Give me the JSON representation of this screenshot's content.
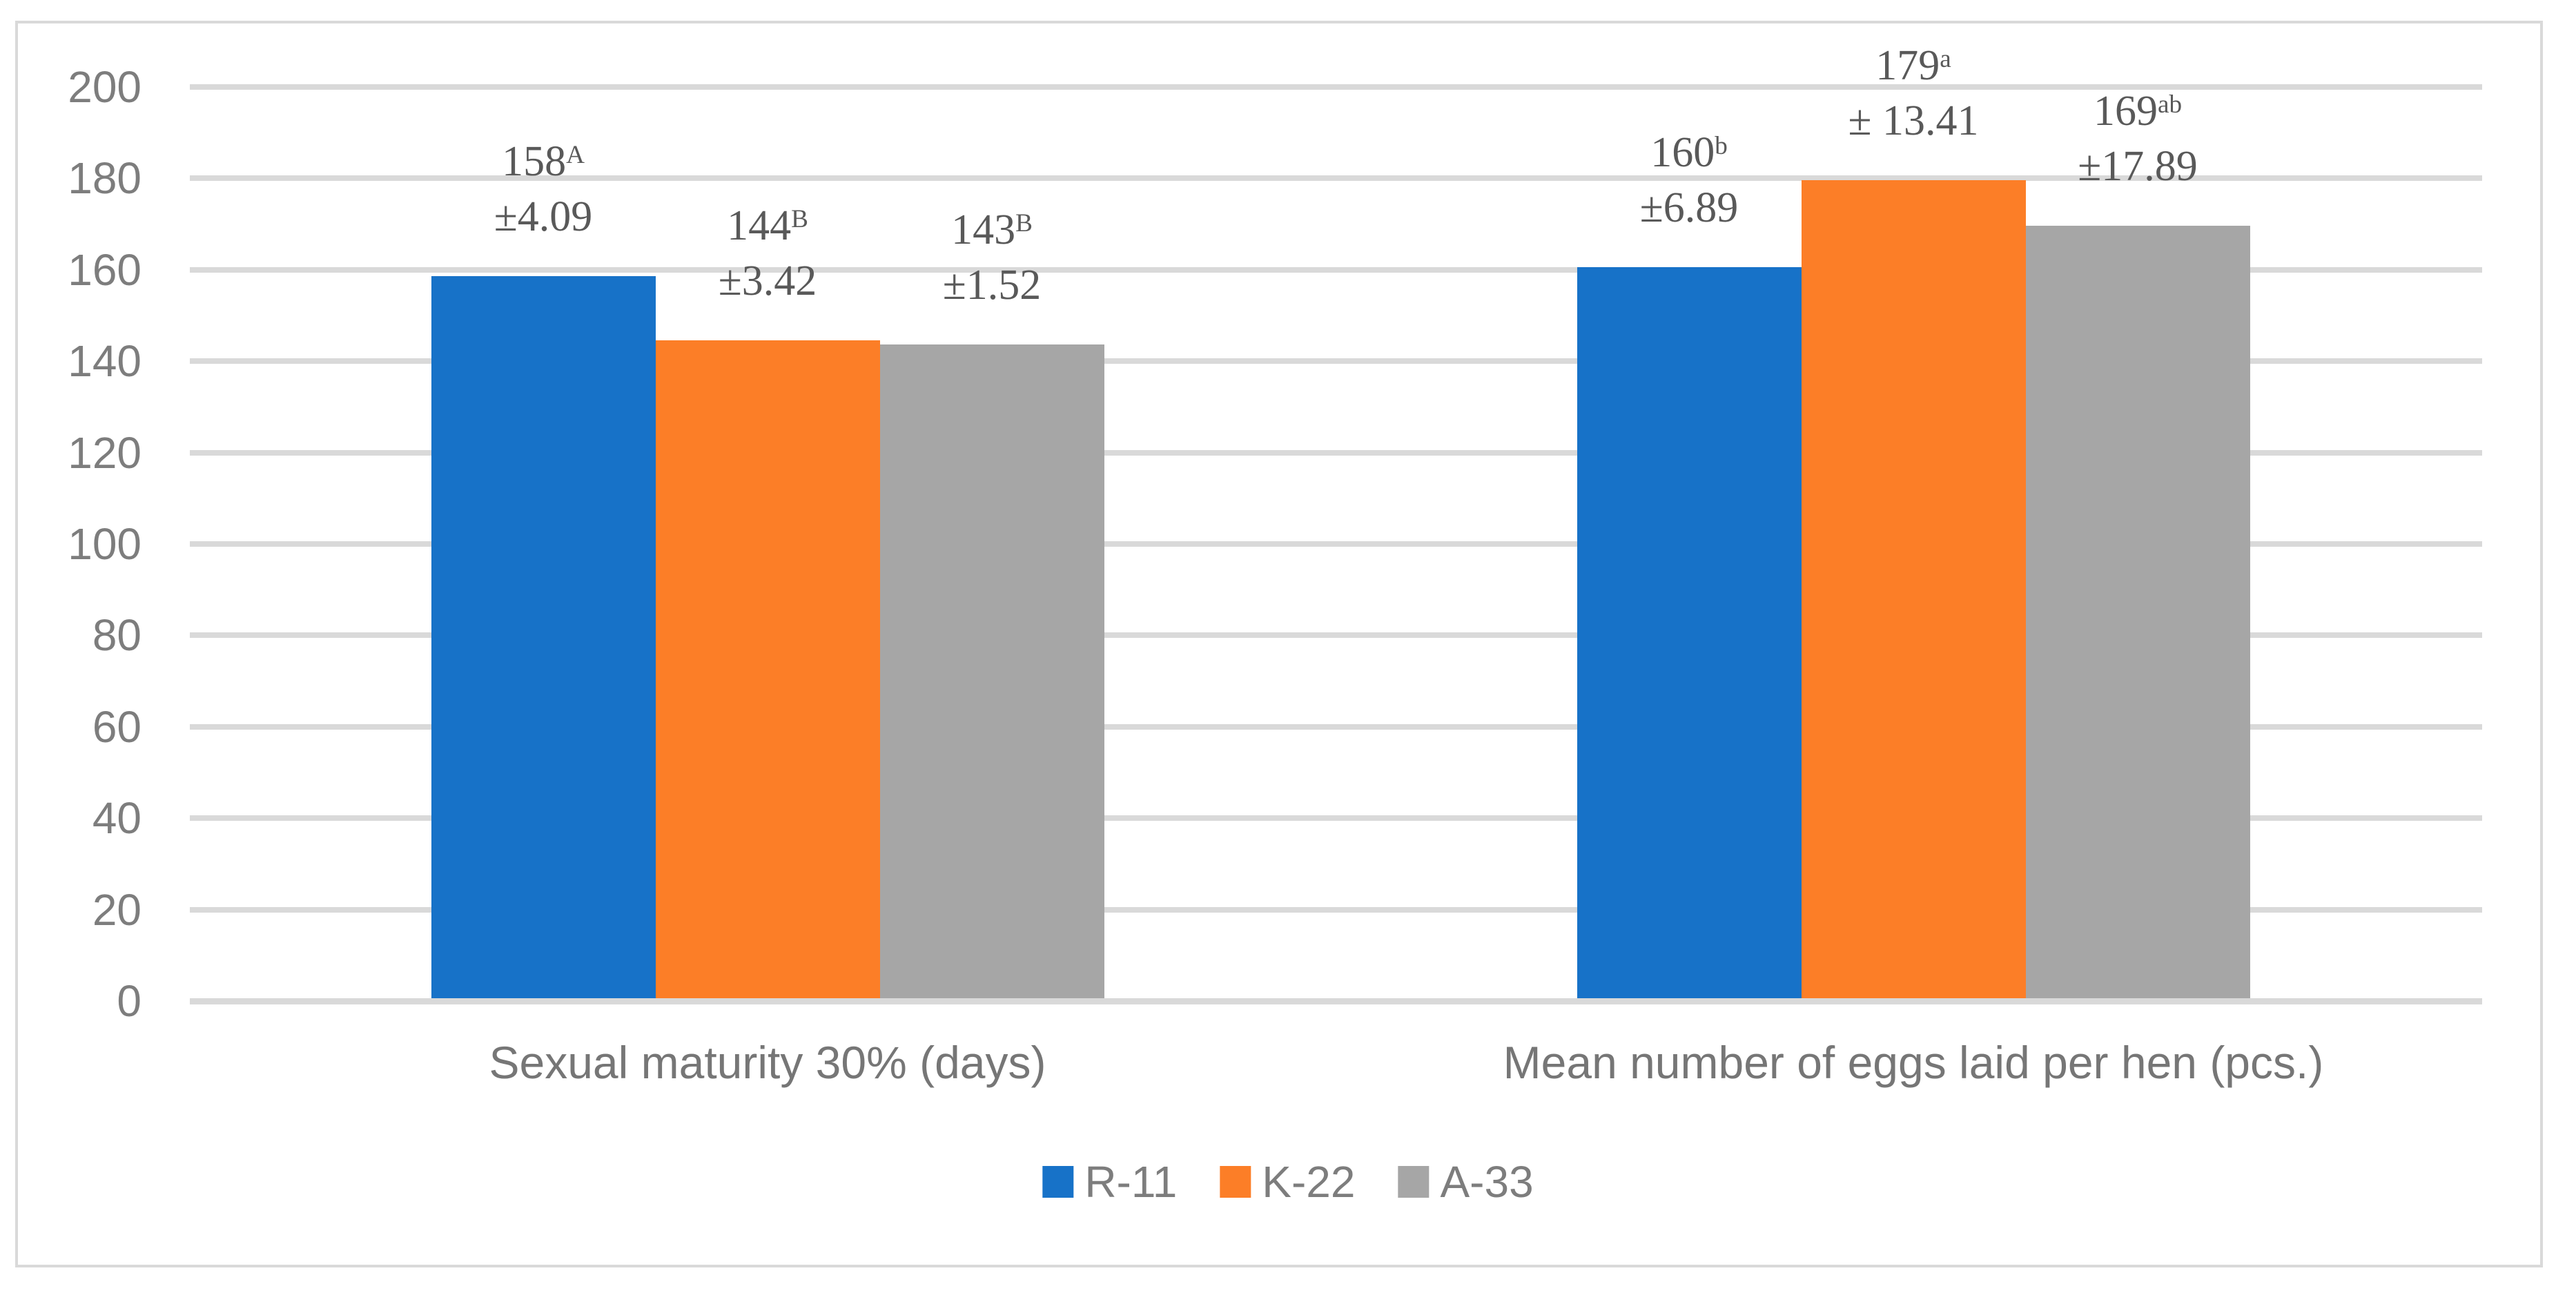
{
  "figure": {
    "background": "#ffffff",
    "border_color": "#d9d9d9",
    "gridline_color": "#d9d9d9",
    "axis_text_color": "#7d7d7d",
    "data_label_color": "#595959"
  },
  "chart_data": {
    "type": "bar",
    "title": "",
    "xlabel": "",
    "ylabel": "",
    "categories": [
      "Sexual maturity 30% (days)",
      "Mean number of eggs laid per hen (pcs.)"
    ],
    "series": [
      {
        "name": "R-11",
        "color": "#1772c8",
        "values": [
          158,
          160
        ],
        "superscripts": [
          "A",
          "b"
        ],
        "error_labels": [
          "±4.09",
          "±6.89"
        ]
      },
      {
        "name": "K-22",
        "color": "#fc7e27",
        "values": [
          144,
          179
        ],
        "superscripts": [
          "B",
          "a"
        ],
        "error_labels": [
          "±3.42",
          "± 13.41"
        ]
      },
      {
        "name": "A-33",
        "color": "#a6a6a6",
        "values": [
          143,
          169
        ],
        "superscripts": [
          "B",
          "ab"
        ],
        "error_labels": [
          "±1.52",
          "±17.89"
        ]
      }
    ],
    "ylim": [
      0,
      200
    ],
    "yticks": [
      0,
      20,
      40,
      60,
      80,
      100,
      120,
      140,
      160,
      180,
      200
    ],
    "grid": "horizontal",
    "legend_position": "bottom",
    "legend_entries": [
      "R-11",
      "K-22",
      "A-33"
    ]
  }
}
